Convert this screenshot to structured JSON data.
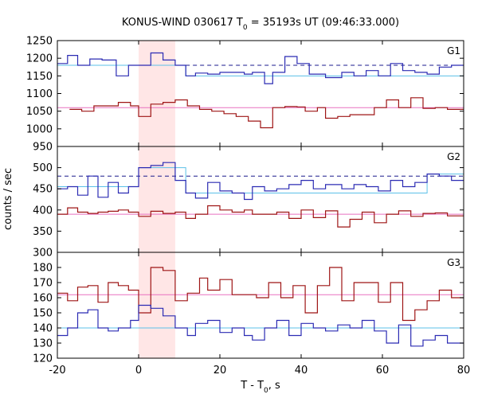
{
  "chart_data": {
    "type": "line",
    "title": "KONUS-WIND 030617 T",
    "title_sub": "0",
    "title_rest": " = 35193s UT (09:46:33.000)",
    "xlabel": "T - T",
    "xlabel_sub": "0",
    "xlabel_rest": ", s",
    "ylabel": "counts / sec",
    "xlim": [
      -20,
      80
    ],
    "x_ticks": [
      -20,
      0,
      20,
      40,
      60,
      80
    ],
    "highlight_interval": [
      0,
      9
    ],
    "colors": {
      "blue": "#2b2bb3",
      "red": "#9e1515",
      "cyan": "#5bc0e8",
      "pink": "#e870c0",
      "navy": "#1a1a8c",
      "shade": "#ffe6e6"
    },
    "panels": [
      {
        "label": "G1",
        "ylim": [
          950,
          1250
        ],
        "y_ticks": [
          950,
          1000,
          1050,
          1100,
          1150,
          1200,
          1250
        ],
        "blue_steps": {
          "edges": [
            -20,
            -17.5,
            -15,
            -12,
            -9,
            -5.5,
            -2.5,
            0,
            3,
            6,
            9,
            11.6,
            14,
            17,
            20,
            23,
            26,
            28,
            31,
            33,
            36,
            39,
            42,
            46,
            50,
            53,
            56,
            59,
            62,
            65,
            68,
            71,
            74,
            77,
            80
          ],
          "values": [
            1185,
            1208,
            1180,
            1198,
            1195,
            1150,
            1180,
            1180,
            1215,
            1195,
            1180,
            1150,
            1158,
            1155,
            1160,
            1160,
            1155,
            1160,
            1128,
            1160,
            1205,
            1185,
            1155,
            1145,
            1160,
            1150,
            1165,
            1150,
            1185,
            1165,
            1160,
            1155,
            1175,
            1180
          ]
        },
        "red_steps": {
          "edges": [
            -17,
            -14,
            -11,
            -8,
            -5,
            -2,
            0,
            3,
            6,
            9,
            12,
            15,
            18,
            21,
            24,
            27,
            30,
            33,
            36,
            39,
            41,
            44,
            46,
            49,
            52,
            55,
            58,
            61,
            64,
            67,
            70,
            73,
            76,
            80
          ],
          "values": [
            1055,
            1050,
            1065,
            1065,
            1075,
            1065,
            1035,
            1070,
            1075,
            1082,
            1065,
            1055,
            1050,
            1043,
            1035,
            1022,
            1003,
            1060,
            1063,
            1062,
            1050,
            1060,
            1030,
            1035,
            1040,
            1040,
            1060,
            1082,
            1060,
            1088,
            1058,
            1060,
            1055,
            1055
          ]
        },
        "cyan_level": {
          "x": [
            -20,
            11.6,
            80
          ],
          "y": [
            1180,
            1150,
            1150
          ]
        },
        "navy_dashed": {
          "x": [
            11.6,
            80
          ],
          "y": 1180
        },
        "pink_level": {
          "x": [
            -20,
            80
          ],
          "y": 1060
        }
      },
      {
        "label": "G2",
        "ylim": [
          300,
          550
        ],
        "y_ticks": [
          300,
          350,
          400,
          450,
          500
        ],
        "blue_steps": {
          "edges": [
            -20,
            -17.5,
            -15,
            -12.5,
            -10,
            -7.5,
            -5,
            -2.5,
            0,
            3,
            6,
            9,
            11.6,
            14,
            17,
            20,
            23,
            26,
            28,
            31,
            34,
            37,
            40,
            43,
            46,
            50,
            53,
            56,
            59,
            62,
            65,
            68,
            71,
            74,
            77,
            80
          ],
          "values": [
            450,
            455,
            435,
            480,
            430,
            465,
            440,
            455,
            500,
            505,
            512,
            470,
            440,
            428,
            465,
            445,
            440,
            425,
            455,
            445,
            450,
            460,
            470,
            450,
            460,
            450,
            460,
            455,
            445,
            470,
            455,
            465,
            485,
            480,
            470
          ]
        },
        "red_steps": {
          "edges": [
            -20,
            -17.5,
            -15,
            -12.5,
            -10,
            -7.5,
            -5,
            -2.5,
            0,
            3,
            6,
            9,
            11.6,
            14,
            17,
            20,
            23,
            26,
            28,
            31,
            34,
            37,
            40,
            43,
            46,
            49,
            52,
            55,
            58,
            61,
            64,
            67,
            70,
            73,
            76,
            80
          ],
          "values": [
            390,
            405,
            395,
            392,
            395,
            397,
            400,
            395,
            385,
            397,
            392,
            395,
            380,
            390,
            410,
            400,
            395,
            400,
            390,
            390,
            395,
            380,
            400,
            382,
            398,
            360,
            378,
            395,
            370,
            390,
            398,
            385,
            392,
            393,
            386
          ]
        },
        "cyan_level": {
          "x": [
            -20,
            0,
            11.6,
            71,
            80
          ],
          "y": [
            455,
            500,
            440,
            485,
            470
          ]
        },
        "navy_dashed": {
          "x": [
            -20,
            80
          ],
          "y": 480
        },
        "pink_level": {
          "x": [
            -20,
            80
          ],
          "y": 390
        }
      },
      {
        "label": "G3",
        "ylim": [
          120,
          190
        ],
        "y_ticks": [
          120,
          130,
          140,
          150,
          160,
          170,
          180
        ],
        "blue_steps": {
          "edges": [
            -20,
            -17.5,
            -15,
            -12.5,
            -10,
            -7.5,
            -5,
            -2,
            0,
            3,
            6,
            9,
            12,
            14,
            17,
            20,
            23,
            26,
            28,
            31,
            34,
            37,
            40,
            43,
            46,
            49,
            52,
            55,
            58,
            61,
            64,
            67,
            70,
            73,
            76,
            80
          ],
          "values": [
            135,
            140,
            150,
            152,
            140,
            138,
            140,
            145,
            155,
            153,
            148,
            140,
            135,
            143,
            145,
            137,
            140,
            135,
            132,
            140,
            145,
            135,
            143,
            140,
            138,
            142,
            140,
            145,
            138,
            130,
            142,
            128,
            132,
            135,
            130,
            130
          ]
        },
        "red_steps": {
          "edges": [
            -20,
            -17.5,
            -15,
            -12.5,
            -10,
            -7.5,
            -5,
            -2.5,
            0,
            3,
            6,
            9,
            12,
            15,
            17,
            20,
            23,
            26,
            29,
            32,
            35,
            38,
            41,
            44,
            47,
            50,
            53,
            56,
            59,
            62,
            65,
            68,
            71,
            74,
            77,
            80
          ],
          "values": [
            163,
            158,
            167,
            168,
            157,
            170,
            168,
            165,
            150,
            180,
            178,
            158,
            163,
            173,
            165,
            172,
            162,
            162,
            160,
            170,
            160,
            168,
            150,
            168,
            180,
            158,
            170,
            170,
            157,
            170,
            145,
            152,
            158,
            165,
            160,
            160
          ]
        },
        "cyan_level": {
          "x": [
            -20,
            80
          ],
          "y": 140
        },
        "navy_dashed": null,
        "pink_level": {
          "x": [
            -20,
            80
          ],
          "y": 162
        }
      }
    ]
  }
}
